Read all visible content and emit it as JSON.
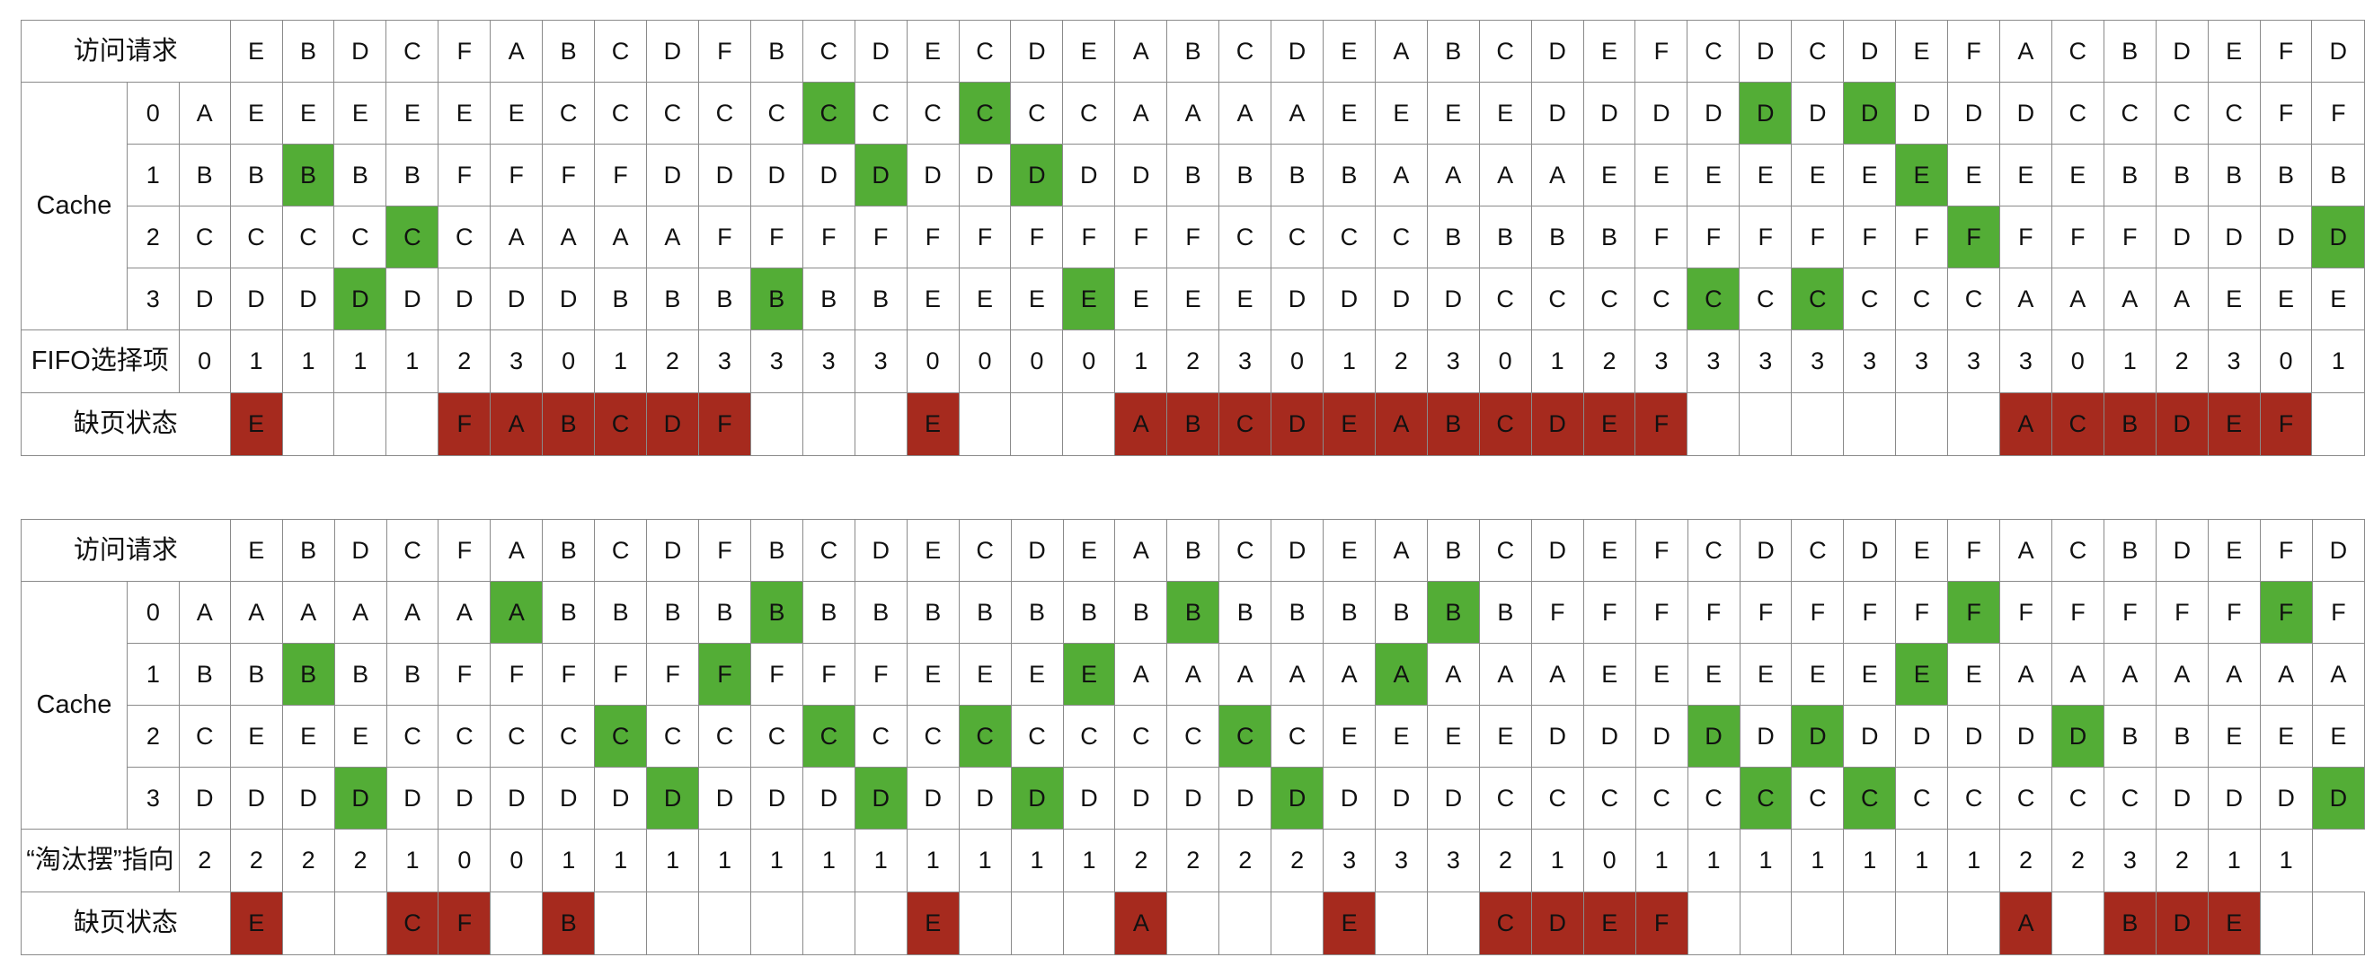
{
  "colors": {
    "hit": "#53ad36",
    "miss": "#a62a1e",
    "border": "#8a8a8a"
  },
  "tables": [
    {
      "request_label": "访问请求",
      "cache_label": "Cache",
      "pointer_label": "FIFO选择项",
      "miss_label": "缺页状态",
      "slots": [
        "0",
        "1",
        "2",
        "3"
      ],
      "initial": [
        "A",
        "B",
        "C",
        "D"
      ],
      "requests": [
        "E",
        "B",
        "D",
        "C",
        "F",
        "A",
        "B",
        "C",
        "D",
        "F",
        "B",
        "C",
        "D",
        "E",
        "C",
        "D",
        "E",
        "A",
        "B",
        "C",
        "D",
        "E",
        "A",
        "B",
        "C",
        "D",
        "E",
        "F",
        "C",
        "D",
        "C",
        "D",
        "E",
        "F",
        "A",
        "C",
        "B",
        "D",
        "E",
        "F",
        "D"
      ],
      "cache": [
        [
          "E",
          "E",
          "E",
          "E",
          "E",
          "E",
          "C",
          "C",
          "C",
          "C",
          "C",
          "C",
          "C",
          "C",
          "C",
          "C",
          "C",
          "A",
          "A",
          "A",
          "A",
          "E",
          "E",
          "E",
          "E",
          "D",
          "D",
          "D",
          "D",
          "D",
          "D",
          "D",
          "D",
          "D",
          "D",
          "C",
          "C",
          "C",
          "C",
          "F",
          "F"
        ],
        [
          "B",
          "B",
          "B",
          "B",
          "F",
          "F",
          "F",
          "F",
          "D",
          "D",
          "D",
          "D",
          "D",
          "D",
          "D",
          "D",
          "D",
          "D",
          "B",
          "B",
          "B",
          "B",
          "A",
          "A",
          "A",
          "A",
          "E",
          "E",
          "E",
          "E",
          "E",
          "E",
          "E",
          "E",
          "E",
          "E",
          "B",
          "B",
          "B",
          "B",
          "B"
        ],
        [
          "C",
          "C",
          "C",
          "C",
          "C",
          "A",
          "A",
          "A",
          "A",
          "F",
          "F",
          "F",
          "F",
          "F",
          "F",
          "F",
          "F",
          "F",
          "F",
          "C",
          "C",
          "C",
          "C",
          "B",
          "B",
          "B",
          "B",
          "F",
          "F",
          "F",
          "F",
          "F",
          "F",
          "F",
          "F",
          "F",
          "F",
          "D",
          "D",
          "D",
          "D"
        ],
        [
          "D",
          "D",
          "D",
          "D",
          "D",
          "D",
          "D",
          "B",
          "B",
          "B",
          "B",
          "B",
          "B",
          "E",
          "E",
          "E",
          "E",
          "E",
          "E",
          "E",
          "D",
          "D",
          "D",
          "D",
          "C",
          "C",
          "C",
          "C",
          "C",
          "C",
          "C",
          "C",
          "C",
          "C",
          "A",
          "A",
          "A",
          "A",
          "E",
          "E",
          "E"
        ]
      ],
      "hits": [
        [
          1,
          1
        ],
        [
          2,
          3
        ],
        [
          3,
          2
        ],
        [
          10,
          3
        ],
        [
          11,
          0
        ],
        [
          12,
          1
        ],
        [
          14,
          0
        ],
        [
          15,
          1
        ],
        [
          16,
          3
        ],
        [
          28,
          3
        ],
        [
          29,
          0
        ],
        [
          30,
          3
        ],
        [
          31,
          0
        ],
        [
          32,
          1
        ],
        [
          33,
          2
        ],
        [
          40,
          2
        ]
      ],
      "pointers": [
        "0",
        "1",
        "1",
        "1",
        "1",
        "2",
        "3",
        "0",
        "1",
        "2",
        "3",
        "3",
        "3",
        "3",
        "0",
        "0",
        "0",
        "0",
        "1",
        "2",
        "3",
        "0",
        "1",
        "2",
        "3",
        "0",
        "1",
        "2",
        "3",
        "3",
        "3",
        "3",
        "3",
        "3",
        "3",
        "3",
        "0",
        "1",
        "2",
        "3",
        "0",
        "1"
      ],
      "misses": [
        "E",
        "",
        "",
        "",
        "F",
        "A",
        "B",
        "C",
        "D",
        "F",
        "",
        "",
        "",
        "E",
        "",
        "",
        "",
        "A",
        "B",
        "C",
        "D",
        "E",
        "A",
        "B",
        "C",
        "D",
        "E",
        "F",
        "",
        "",
        "",
        "",
        "",
        "",
        "A",
        "C",
        "B",
        "D",
        "E",
        "F",
        ""
      ]
    },
    {
      "request_label": "访问请求",
      "cache_label": "Cache",
      "pointer_label": "“淘汰摆”指向",
      "miss_label": "缺页状态",
      "slots": [
        "0",
        "1",
        "2",
        "3"
      ],
      "initial": [
        "A",
        "B",
        "C",
        "D"
      ],
      "requests": [
        "E",
        "B",
        "D",
        "C",
        "F",
        "A",
        "B",
        "C",
        "D",
        "F",
        "B",
        "C",
        "D",
        "E",
        "C",
        "D",
        "E",
        "A",
        "B",
        "C",
        "D",
        "E",
        "A",
        "B",
        "C",
        "D",
        "E",
        "F",
        "C",
        "D",
        "C",
        "D",
        "E",
        "F",
        "A",
        "C",
        "B",
        "D",
        "E",
        "F",
        "D"
      ],
      "cache": [
        [
          "A",
          "A",
          "A",
          "A",
          "A",
          "A",
          "B",
          "B",
          "B",
          "B",
          "B",
          "B",
          "B",
          "B",
          "B",
          "B",
          "B",
          "B",
          "B",
          "B",
          "B",
          "B",
          "B",
          "B",
          "B",
          "F",
          "F",
          "F",
          "F",
          "F",
          "F",
          "F",
          "F",
          "F",
          "F",
          "F",
          "F",
          "F",
          "F",
          "F",
          "F"
        ],
        [
          "B",
          "B",
          "B",
          "B",
          "F",
          "F",
          "F",
          "F",
          "F",
          "F",
          "F",
          "F",
          "F",
          "E",
          "E",
          "E",
          "E",
          "A",
          "A",
          "A",
          "A",
          "A",
          "A",
          "A",
          "A",
          "A",
          "E",
          "E",
          "E",
          "E",
          "E",
          "E",
          "E",
          "E",
          "A",
          "A",
          "A",
          "A",
          "A",
          "A",
          "A"
        ],
        [
          "E",
          "E",
          "E",
          "C",
          "C",
          "C",
          "C",
          "C",
          "C",
          "C",
          "C",
          "C",
          "C",
          "C",
          "C",
          "C",
          "C",
          "C",
          "C",
          "C",
          "C",
          "E",
          "E",
          "E",
          "E",
          "D",
          "D",
          "D",
          "D",
          "D",
          "D",
          "D",
          "D",
          "D",
          "D",
          "D",
          "B",
          "B",
          "E",
          "E",
          "E"
        ],
        [
          "D",
          "D",
          "D",
          "D",
          "D",
          "D",
          "D",
          "D",
          "D",
          "D",
          "D",
          "D",
          "D",
          "D",
          "D",
          "D",
          "D",
          "D",
          "D",
          "D",
          "D",
          "D",
          "D",
          "D",
          "C",
          "C",
          "C",
          "C",
          "C",
          "C",
          "C",
          "C",
          "C",
          "C",
          "C",
          "C",
          "C",
          "D",
          "D",
          "D",
          "D"
        ]
      ],
      "hits": [
        [
          1,
          1
        ],
        [
          2,
          3
        ],
        [
          5,
          0
        ],
        [
          7,
          2
        ],
        [
          8,
          3
        ],
        [
          9,
          1
        ],
        [
          10,
          0
        ],
        [
          11,
          2
        ],
        [
          12,
          3
        ],
        [
          14,
          2
        ],
        [
          15,
          3
        ],
        [
          16,
          1
        ],
        [
          18,
          0
        ],
        [
          19,
          2
        ],
        [
          20,
          3
        ],
        [
          22,
          1
        ],
        [
          23,
          0
        ],
        [
          28,
          2
        ],
        [
          29,
          3
        ],
        [
          30,
          2
        ],
        [
          31,
          3
        ],
        [
          32,
          1
        ],
        [
          33,
          0
        ],
        [
          35,
          2
        ],
        [
          39,
          0
        ],
        [
          40,
          3
        ]
      ],
      "pointers": [
        "2",
        "2",
        "2",
        "2",
        "1",
        "0",
        "0",
        "1",
        "1",
        "1",
        "1",
        "1",
        "1",
        "1",
        "1",
        "1",
        "1",
        "1",
        "2",
        "2",
        "2",
        "2",
        "3",
        "3",
        "3",
        "2",
        "1",
        "0",
        "1",
        "1",
        "1",
        "1",
        "1",
        "1",
        "1",
        "2",
        "2",
        "3",
        "2",
        "1",
        "1"
      ],
      "misses": [
        "E",
        "",
        "",
        "C",
        "F",
        "",
        "B",
        "",
        "",
        "",
        "",
        "",
        "",
        "E",
        "",
        "",
        "",
        "A",
        "",
        "",
        "",
        "E",
        "",
        "",
        "C",
        "D",
        "E",
        "F",
        "",
        "",
        "",
        "",
        "",
        "",
        "A",
        "",
        "B",
        "D",
        "E",
        "",
        ""
      ]
    }
  ]
}
